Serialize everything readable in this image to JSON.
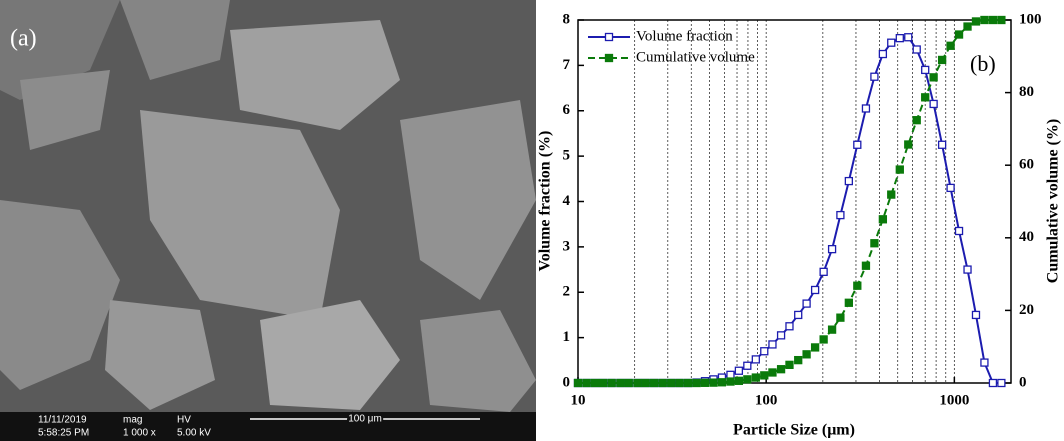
{
  "sem_image": {
    "label": "(a)",
    "date": "11/11/2019",
    "time": "5:58:25 PM",
    "mag_title": "mag",
    "mag": "1 000 x",
    "hv_title": "HV",
    "hv": "5.00 kV",
    "scale": "100 μm"
  },
  "chart_data": {
    "type": "line",
    "annotation": "(b)",
    "x_label": "Particle Size (μm)",
    "y_label": "Volume fraction (%)",
    "y2_label": "Cumulative volume (%)",
    "log_x": true,
    "xlim": [
      10,
      2000
    ],
    "xticks": [
      10,
      100,
      1000
    ],
    "xgrid": [
      20,
      30,
      40,
      50,
      60,
      70,
      80,
      90,
      100,
      200,
      300,
      400,
      500,
      600,
      700,
      800,
      900,
      1000
    ],
    "ylim": [
      0,
      8
    ],
    "yticks": [
      0,
      1,
      2,
      3,
      4,
      5,
      6,
      7,
      8
    ],
    "y2lim": [
      0,
      100
    ],
    "y2ticks": [
      0,
      20,
      40,
      60,
      80,
      100
    ],
    "legend": "upper left",
    "x": [
      10,
      11.1,
      12.3,
      13.6,
      15.1,
      16.8,
      18.6,
      20.7,
      22.9,
      25.4,
      28.2,
      31.3,
      34.7,
      38.5,
      42.7,
      47.3,
      52.5,
      58.2,
      64.6,
      71.6,
      79.4,
      88.1,
      97.7,
      108,
      120,
      133,
      148,
      164,
      182,
      202,
      224,
      248,
      275,
      305,
      339,
      376,
      417,
      462,
      513,
      569,
      631,
      700,
      776,
      861,
      955,
      1059,
      1175,
      1303,
      1445,
      1603,
      1778
    ],
    "series": [
      {
        "name": "Volume fraction",
        "color": "#1c1caf",
        "marker": "open-square",
        "dash": false,
        "values": [
          0,
          0,
          0,
          0,
          0,
          0,
          0,
          0,
          0,
          0,
          0,
          0,
          0,
          0,
          0.01,
          0.04,
          0.08,
          0.12,
          0.18,
          0.27,
          0.38,
          0.52,
          0.7,
          0.85,
          1.05,
          1.25,
          1.5,
          1.75,
          2.05,
          2.45,
          2.95,
          3.7,
          4.45,
          5.25,
          6.05,
          6.75,
          7.25,
          7.5,
          7.6,
          7.62,
          7.35,
          6.9,
          6.15,
          5.25,
          4.3,
          3.35,
          2.5,
          1.5,
          0.45,
          0,
          0
        ]
      },
      {
        "name": "Cumulative volume",
        "color": "#0a7a0a",
        "marker": "filled-square",
        "dash": true,
        "axis": "y2",
        "values": [
          0,
          0,
          0,
          0,
          0,
          0,
          0,
          0,
          0,
          0,
          0,
          0,
          0,
          0,
          0,
          0.05,
          0.1,
          0.2,
          0.4,
          0.6,
          1,
          1.5,
          2.1,
          2.9,
          3.8,
          5,
          6.3,
          7.9,
          9.8,
          12,
          14.7,
          18,
          22.1,
          26.8,
          32.3,
          38.5,
          45.1,
          51.9,
          58.8,
          65.7,
          72.4,
          78.7,
          84.2,
          89,
          92.9,
          96,
          98.2,
          99.6,
          100,
          100,
          100
        ]
      }
    ]
  }
}
